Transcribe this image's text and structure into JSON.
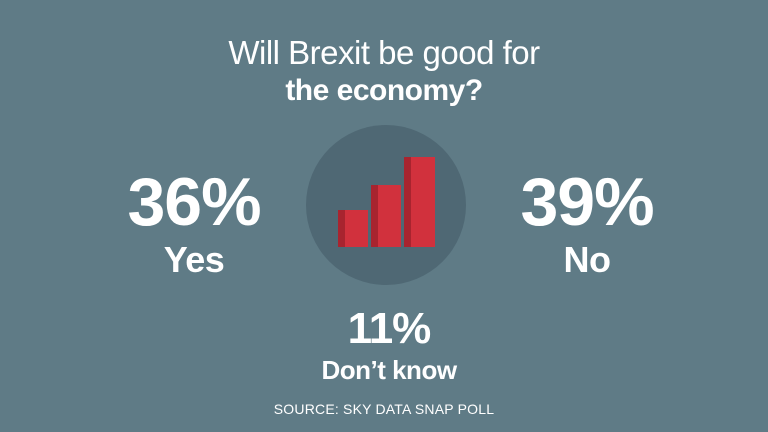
{
  "title": {
    "line1": "Will Brexit be good for",
    "line2": "the economy?"
  },
  "source": "SOURCE: SKY DATA SNAP POLL",
  "colors": {
    "background": "#5f7b86",
    "emblem_circle": "#4f6874",
    "bar_red": "#d1313d",
    "bar_shade": "#a8242f",
    "text": "#ffffff"
  },
  "icon": "bar-chart-icon",
  "chart_data": {
    "type": "bar",
    "title": "Will Brexit be good for the economy?",
    "categories": [
      "Yes",
      "No",
      "Don’t know"
    ],
    "values": [
      36,
      39,
      11
    ],
    "labels": [
      "36%",
      "39%",
      "11%"
    ],
    "unit": "%",
    "source": "SOURCE: SKY DATA SNAP POLL"
  },
  "stats": {
    "yes": {
      "value": "36%",
      "label": "Yes"
    },
    "no": {
      "value": "39%",
      "label": "No"
    },
    "dont_know": {
      "value": "11%",
      "label": "Don’t know"
    }
  }
}
